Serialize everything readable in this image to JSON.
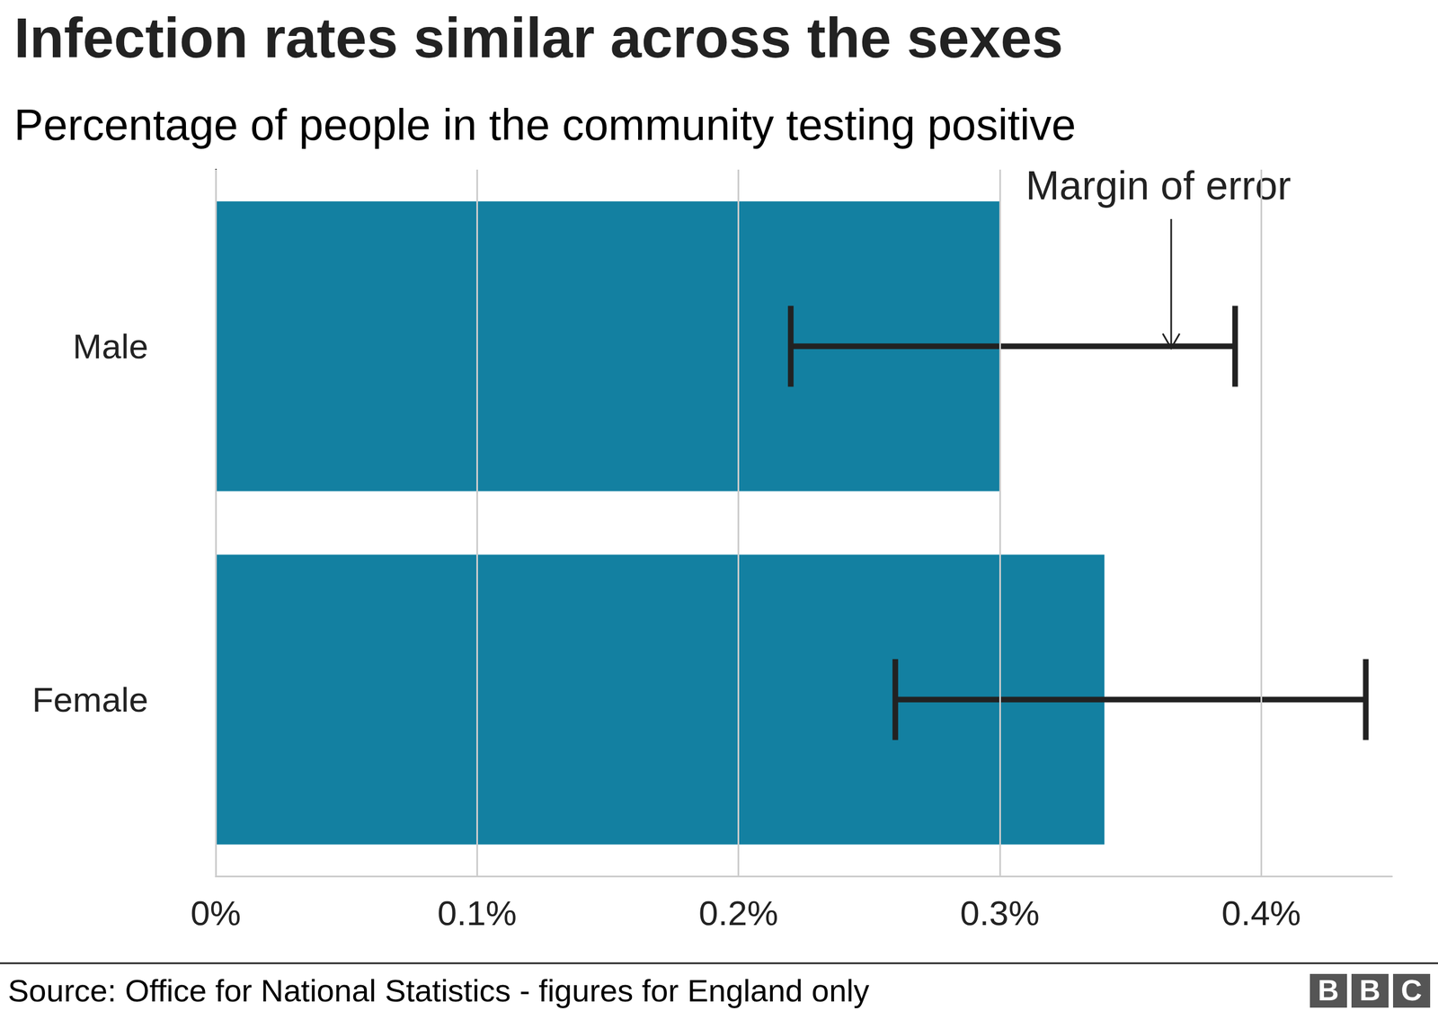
{
  "chart_data": {
    "type": "bar",
    "orientation": "horizontal",
    "title": "Infection rates similar across the sexes",
    "subtitle": "Percentage of people in the community testing positive",
    "categories": [
      "Male",
      "Female"
    ],
    "values": [
      0.3,
      0.34
    ],
    "error_low": [
      0.22,
      0.26
    ],
    "error_high": [
      0.39,
      0.44
    ],
    "color": "#1380a1",
    "xlim": [
      0,
      0.45
    ],
    "xticks": [
      {
        "value": 0,
        "label": "0%"
      },
      {
        "value": 0.1,
        "label": "0.1%"
      },
      {
        "value": 0.2,
        "label": "0.2%"
      },
      {
        "value": 0.3,
        "label": "0.3%"
      },
      {
        "value": 0.4,
        "label": "0.4%"
      }
    ],
    "grid": true,
    "annotation": "Margin of error",
    "source": "Source: Office for National Statistics - figures for England only",
    "logo": "BBC"
  }
}
